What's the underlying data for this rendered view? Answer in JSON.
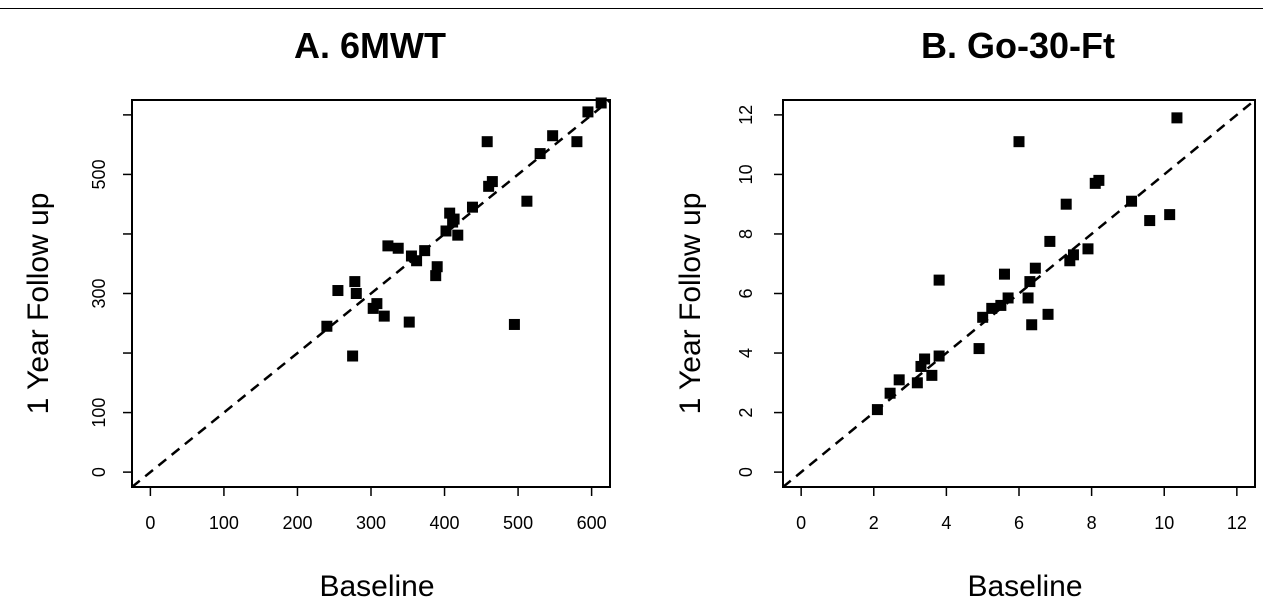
{
  "chart_data": [
    {
      "type": "scatter",
      "title": "A. 6MWT",
      "xlabel": "Baseline",
      "ylabel": "1 Year Follow up",
      "xlim": [
        -25,
        625
      ],
      "ylim": [
        -25,
        625
      ],
      "x_ticks": [
        "0",
        "100",
        "200",
        "300",
        "400",
        "500",
        "600"
      ],
      "y_ticks": [
        "0",
        "100",
        "300",
        "500"
      ],
      "y_tick_values": [
        0,
        100,
        200,
        300,
        400,
        500,
        600
      ],
      "reference_line": "y = x (dashed)",
      "grid": false,
      "marker": "filled square",
      "series": [
        {
          "points": [
            [
              240,
              245
            ],
            [
              255,
              305
            ],
            [
              275,
              195
            ],
            [
              278,
              320
            ],
            [
              280,
              300
            ],
            [
              303,
              275
            ],
            [
              308,
              283
            ],
            [
              318,
              262
            ],
            [
              323,
              380
            ],
            [
              337,
              376
            ],
            [
              352,
              252
            ],
            [
              355,
              363
            ],
            [
              362,
              355
            ],
            [
              373,
              372
            ],
            [
              388,
              330
            ],
            [
              390,
              345
            ],
            [
              402,
              405
            ],
            [
              407,
              435
            ],
            [
              411,
              420
            ],
            [
              413,
              425
            ],
            [
              418,
              398
            ],
            [
              438,
              445
            ],
            [
              458,
              555
            ],
            [
              460,
              480
            ],
            [
              465,
              488
            ],
            [
              495,
              248
            ],
            [
              512,
              455
            ],
            [
              530,
              535
            ],
            [
              547,
              565
            ],
            [
              580,
              555
            ],
            [
              595,
              605
            ],
            [
              613,
              620
            ]
          ]
        }
      ]
    },
    {
      "type": "scatter",
      "title": "B. Go-30-Ft",
      "xlabel": "Baseline",
      "ylabel": "1 Year Follow up",
      "xlim": [
        -0.5,
        12.5
      ],
      "ylim": [
        -0.5,
        12.5
      ],
      "x_ticks": [
        "0",
        "2",
        "4",
        "6",
        "8",
        "10",
        "12"
      ],
      "y_ticks": [
        "0",
        "2",
        "4",
        "6",
        "8",
        "10",
        "12"
      ],
      "reference_line": "y = x (dashed)",
      "grid": false,
      "marker": "filled square",
      "series": [
        {
          "points": [
            [
              2.1,
              2.1
            ],
            [
              2.45,
              2.65
            ],
            [
              2.7,
              3.1
            ],
            [
              3.2,
              3.0
            ],
            [
              3.3,
              3.55
            ],
            [
              3.4,
              3.8
            ],
            [
              3.6,
              3.25
            ],
            [
              3.8,
              3.9
            ],
            [
              3.8,
              6.45
            ],
            [
              4.9,
              4.15
            ],
            [
              5.0,
              5.2
            ],
            [
              5.25,
              5.5
            ],
            [
              5.5,
              5.6
            ],
            [
              5.6,
              6.65
            ],
            [
              5.7,
              5.85
            ],
            [
              6.0,
              11.1
            ],
            [
              6.25,
              5.85
            ],
            [
              6.3,
              6.4
            ],
            [
              6.35,
              4.95
            ],
            [
              6.45,
              6.85
            ],
            [
              6.8,
              5.3
            ],
            [
              6.85,
              7.75
            ],
            [
              7.3,
              9.0
            ],
            [
              7.4,
              7.1
            ],
            [
              7.5,
              7.3
            ],
            [
              7.9,
              7.5
            ],
            [
              8.1,
              9.7
            ],
            [
              8.2,
              9.8
            ],
            [
              9.1,
              9.1
            ],
            [
              9.6,
              8.45
            ],
            [
              10.15,
              8.65
            ],
            [
              10.35,
              11.9
            ]
          ]
        }
      ]
    }
  ]
}
